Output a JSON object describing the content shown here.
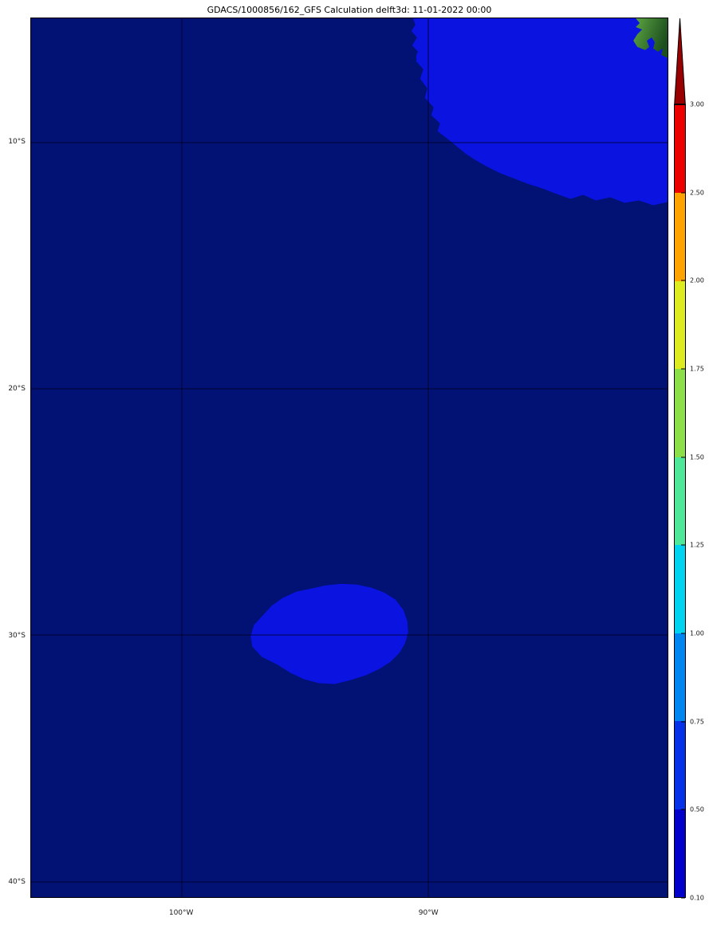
{
  "figure": {
    "title": "GDACS/1000856/162_GFS Calculation delft3d: 11-01-2022 00:00"
  },
  "chart_data": {
    "type": "heatmap",
    "title": "GDACS/1000856/162_GFS Calculation delft3d: 11-01-2022 00:00",
    "description_of_depiction": "Geographic map of wave/surge calculation values over the southeast Pacific Ocean; nearly all area is below the lowest contour level, with two regions in the 0.10-0.75 band: an offshore band hugging the Peru/Chile coast in the northeast corner and an isolated oval patch near 30S 94W; land appears as green in the extreme northeast corner.",
    "x_axis": {
      "ticks": [
        {
          "value": -100,
          "label": "100°W"
        },
        {
          "value": -90,
          "label": "90°W"
        }
      ],
      "range": [
        -106.1,
        -80.3
      ],
      "grid": true
    },
    "y_axis": {
      "ticks": [
        {
          "value": -10,
          "label": "10°S"
        },
        {
          "value": -20,
          "label": "20°S"
        },
        {
          "value": -30,
          "label": "30°S"
        },
        {
          "value": -40,
          "label": "40°S"
        }
      ],
      "range": [
        -4.97,
        -40.63
      ],
      "grid": true
    },
    "colorbar": {
      "extend": "max",
      "levels": [
        0.1,
        0.5,
        0.75,
        1.0,
        1.25,
        1.5,
        1.75,
        2.0,
        2.5,
        3.0
      ],
      "tick_labels": [
        "0.10",
        "0.50",
        "0.75",
        "1.00",
        "1.25",
        "1.50",
        "1.75",
        "2.00",
        "2.50",
        "3.00"
      ],
      "segment_colors": [
        "#0101c9",
        "#0531e9",
        "#0086f1",
        "#00d3f0",
        "#4fe89a",
        "#8ddf4a",
        "#dcec20",
        "#ffa300",
        "#ec0000"
      ],
      "over_color": "#990000",
      "legend_position": "right"
    },
    "map": {
      "background_color": "#021174",
      "region_color": "#0a13e0",
      "land_color_light": "#5fa844",
      "land_color_dark": "#1c4f1e",
      "gridline_color": "rgba(0,0,25,0.38)",
      "features": [
        {
          "name": "offshore-band-northeast",
          "kind": "filled-region",
          "value_band": "0.10-0.75",
          "location": "northeast corner, along coast, ~5S-13S east of 90W"
        },
        {
          "name": "wave-patch-30s",
          "kind": "filled-region",
          "value_band": "0.10-0.75",
          "location": "oval patch centered ~30S, 94W"
        },
        {
          "name": "land-northeast-corner",
          "kind": "land",
          "location": "extreme northeast corner (~80W, 5-7S)"
        }
      ]
    }
  }
}
